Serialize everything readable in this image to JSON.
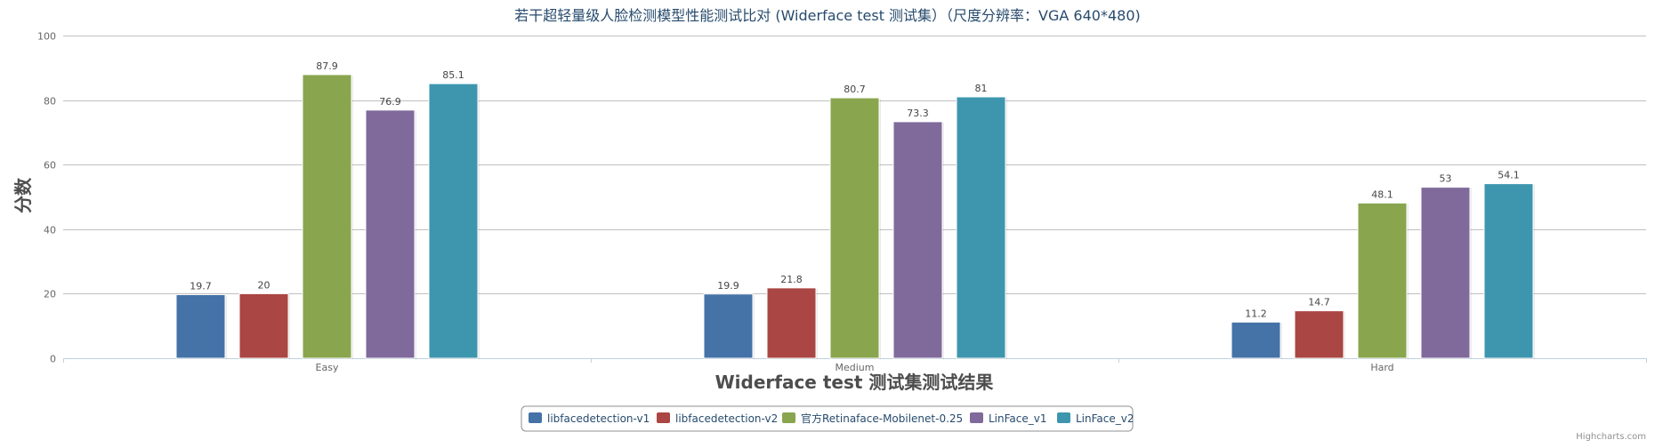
{
  "chart_data": {
    "type": "bar",
    "title": "若干超轻量级人脸检测模型性能测试比对 (Widerface test 测试集）（尺度分辨率：VGA 640*480)",
    "xlabel": "Widerface test 测试集测试结果",
    "ylabel": "分数",
    "categories": [
      "Easy",
      "Medium",
      "Hard"
    ],
    "ylim": [
      0,
      100
    ],
    "yticks": [
      0,
      20,
      40,
      60,
      80,
      100
    ],
    "grid": true,
    "legend_position": "bottom-center",
    "series": [
      {
        "name": "libfacedetection-v1",
        "color": "#4572a7",
        "values": [
          19.7,
          19.9,
          11.2
        ]
      },
      {
        "name": "libfacedetection-v2",
        "color": "#aa4643",
        "values": [
          20,
          21.8,
          14.7
        ]
      },
      {
        "name": "官方Retinaface-Mobilenet-0.25",
        "color": "#89a54e",
        "values": [
          87.9,
          80.7,
          48.1
        ]
      },
      {
        "name": "LinFace_v1",
        "color": "#80699b",
        "values": [
          76.9,
          73.3,
          53
        ]
      },
      {
        "name": "LinFace_v2",
        "color": "#3d96ae",
        "values": [
          85.1,
          81,
          54.1
        ]
      }
    ]
  },
  "credits": "Highcharts.com"
}
